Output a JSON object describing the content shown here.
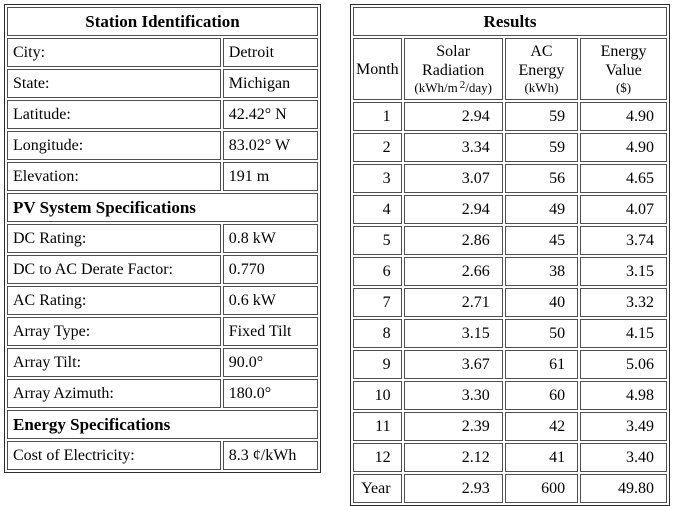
{
  "left_panel": {
    "station": {
      "title": "Station Identification",
      "rows": [
        {
          "label": "City:",
          "value": "Detroit"
        },
        {
          "label": "State:",
          "value": "Michigan"
        },
        {
          "label": "Latitude:",
          "value": "42.42° N"
        },
        {
          "label": "Longitude:",
          "value": "83.02° W"
        },
        {
          "label": "Elevation:",
          "value": "191 m"
        }
      ]
    },
    "pv": {
      "title": "PV System Specifications",
      "rows": [
        {
          "label": "DC Rating:",
          "value": "0.8 kW"
        },
        {
          "label": "DC to AC Derate Factor:",
          "value": "0.770"
        },
        {
          "label": "AC Rating:",
          "value": "0.6 kW"
        },
        {
          "label": "Array Type:",
          "value": "Fixed Tilt"
        },
        {
          "label": "Array Tilt:",
          "value": "90.0°"
        },
        {
          "label": "Array Azimuth:",
          "value": "180.0°"
        }
      ]
    },
    "energy": {
      "title": "Energy Specifications",
      "rows": [
        {
          "label": "Cost of Electricity:",
          "value": "8.3 ¢/kWh"
        }
      ]
    }
  },
  "results": {
    "title": "Results",
    "columns": {
      "month": "Month",
      "solar_line1": "Solar",
      "solar_line2": "Radiation",
      "solar_unit_pre": "(kWh/m",
      "solar_unit_sup": "2",
      "solar_unit_post": "/day)",
      "ac_line1": "AC",
      "ac_line2": "Energy",
      "ac_unit": "(kWh)",
      "value_line1": "Energy",
      "value_line2": "Value",
      "value_unit": "($)"
    },
    "rows": [
      {
        "month": "1",
        "solar": "2.94",
        "ac": "59",
        "value": "4.90"
      },
      {
        "month": "2",
        "solar": "3.34",
        "ac": "59",
        "value": "4.90"
      },
      {
        "month": "3",
        "solar": "3.07",
        "ac": "56",
        "value": "4.65"
      },
      {
        "month": "4",
        "solar": "2.94",
        "ac": "49",
        "value": "4.07"
      },
      {
        "month": "5",
        "solar": "2.86",
        "ac": "45",
        "value": "3.74"
      },
      {
        "month": "6",
        "solar": "2.66",
        "ac": "38",
        "value": "3.15"
      },
      {
        "month": "7",
        "solar": "2.71",
        "ac": "40",
        "value": "3.32"
      },
      {
        "month": "8",
        "solar": "3.15",
        "ac": "50",
        "value": "4.15"
      },
      {
        "month": "9",
        "solar": "3.67",
        "ac": "61",
        "value": "5.06"
      },
      {
        "month": "10",
        "solar": "3.30",
        "ac": "60",
        "value": "4.98"
      },
      {
        "month": "11",
        "solar": "2.39",
        "ac": "42",
        "value": "3.49"
      },
      {
        "month": "12",
        "solar": "2.12",
        "ac": "41",
        "value": "3.40"
      }
    ],
    "year_row": {
      "month": "Year",
      "solar": "2.93",
      "ac": "600",
      "value": "49.80"
    }
  }
}
